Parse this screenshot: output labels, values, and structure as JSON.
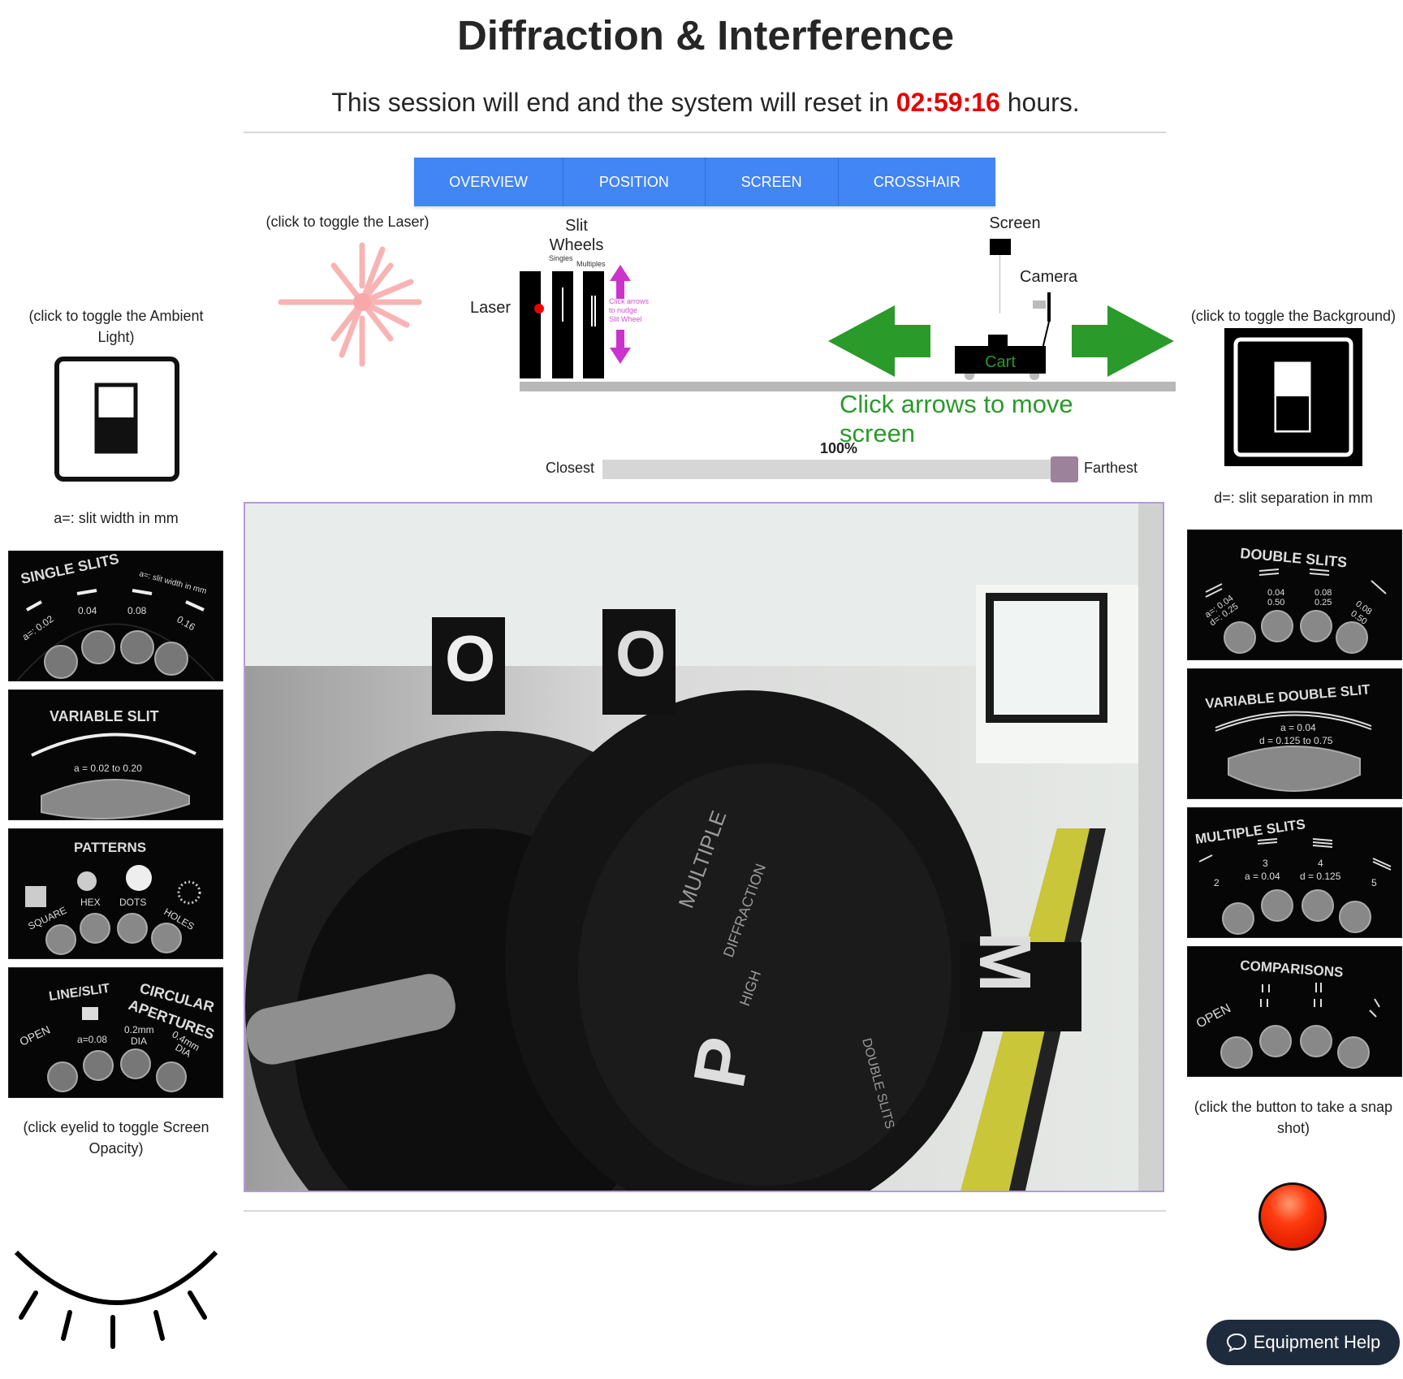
{
  "page": {
    "title": "Diffraction & Interference",
    "session_prefix": "This session will end and the system will reset in ",
    "session_timer": "02:59:16",
    "session_suffix": " hours."
  },
  "tabs": [
    {
      "label": "OVERVIEW"
    },
    {
      "label": "POSITION"
    },
    {
      "label": "SCREEN"
    },
    {
      "label": "CROSSHAIR"
    }
  ],
  "left": {
    "ambient_caption": "(click to toggle the Ambient Light)",
    "slit_width_caption": "a=: slit width in mm",
    "eyelid_caption": "(click eyelid to toggle Screen Opacity)"
  },
  "right": {
    "background_caption": "(click to toggle the Background)",
    "slit_sep_caption": "d=: slit separation in mm",
    "snapshot_caption": "(click the button to take a snap shot)"
  },
  "laser": {
    "caption": "(click to toggle the Laser)"
  },
  "diagram": {
    "slit_label": "Slit",
    "wheels_label": "Wheels",
    "singles_label": "Singles",
    "multiples_label": "Multiples",
    "laser_label": "Laser",
    "nudge_label": [
      "Click arrows",
      "to nudge",
      "Slit Wheel"
    ],
    "screen_label": "Screen",
    "camera_label": "Camera",
    "cart_label": "Cart",
    "move_hint": "Click arrows to move screen"
  },
  "slider": {
    "closest_label": "Closest",
    "farthest_label": "Farthest",
    "value_label": "100%",
    "value": 1.0
  },
  "wheel_tiles_left": {
    "single_slits": {
      "title": "SINGLE SLITS",
      "legend": "a=: slit width in mm",
      "labels": [
        "a=: 0.02",
        "0.04",
        "0.08",
        "0.16"
      ]
    },
    "variable_slit": {
      "title": "VARIABLE SLIT",
      "label": "a = 0.02 to 0.20"
    },
    "patterns": {
      "title": "PATTERNS",
      "labels": [
        "SQUARE",
        "HEX",
        "DOTS",
        "HOLES"
      ]
    },
    "line_circular": {
      "title_left": "LINE/SLIT",
      "title_right_1": "CIRCULAR",
      "title_right_2": "APERTURES",
      "labels": [
        "OPEN",
        "a=0.08",
        "0.2mm",
        "DIA",
        "0.4mm",
        "DIA"
      ]
    }
  },
  "wheel_tiles_right": {
    "double_slits": {
      "title": "DOUBLE SLITS",
      "labels": [
        "a=: 0.04",
        "d=: 0.25",
        "0.04",
        "0.50",
        "0.08",
        "0.25",
        "0.08",
        "0.50"
      ]
    },
    "variable_double_slit": {
      "title": "VARIABLE DOUBLE SLIT",
      "label_a": "a = 0.04",
      "label_d": "d = 0.125 to 0.75"
    },
    "multiple_slits": {
      "title": "MULTIPLE SLITS",
      "labels": [
        "2",
        "3",
        "a = 0.04",
        "4",
        "d = 0.125",
        "5"
      ]
    },
    "comparisons": {
      "title": "COMPARISONS",
      "labels": [
        "OPEN"
      ]
    }
  },
  "camera_feed": {
    "wheel_letters": [
      "O",
      "O",
      "M",
      "P"
    ],
    "engraved": [
      "MULTIPLE",
      "DIFFRACTION",
      "HIGH",
      "DOUBLE SLITS"
    ]
  },
  "help_button": {
    "label": "Equipment Help",
    "icon": "chat-bubble-icon"
  },
  "colors": {
    "tab_blue": "#4285f4",
    "timer_red": "#e40000",
    "arrow_green": "#2a9a2a",
    "nudge_magenta": "#cc33cc",
    "laser_pink": "#f8b4b4",
    "snapshot_red": "#ff3b10"
  }
}
